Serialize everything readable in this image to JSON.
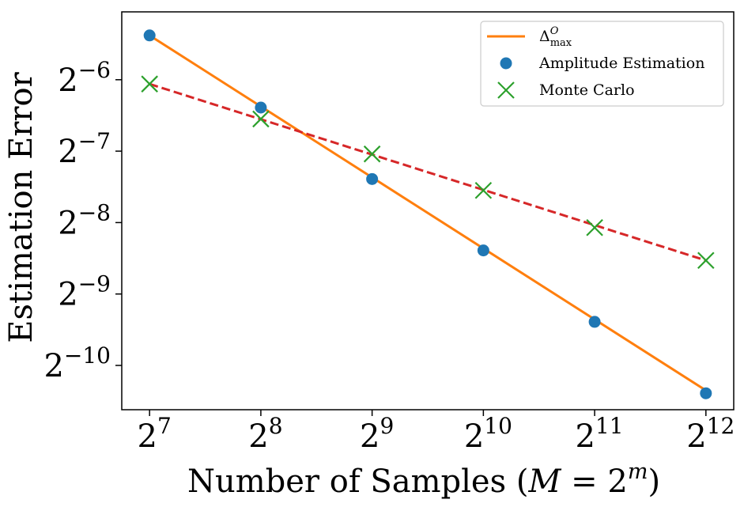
{
  "chart_data": {
    "type": "line",
    "xlabel": "Number of Samples (M = 2^m)",
    "xlabel_parts": {
      "prefix": "Number of Samples (",
      "var": "M",
      "eq": " = 2",
      "exp": "m",
      "suffix": ")"
    },
    "ylabel": "Estimation Error",
    "scale": {
      "x": "log2",
      "y": "log2"
    },
    "xlim_exp": [
      6.75,
      12.25
    ],
    "ylim_exp": [
      -10.62,
      -5.05
    ],
    "x_ticks": [
      {
        "base": "2",
        "exp": "7",
        "value": 7
      },
      {
        "base": "2",
        "exp": "8",
        "value": 8
      },
      {
        "base": "2",
        "exp": "9",
        "value": 9
      },
      {
        "base": "2",
        "exp": "10",
        "value": 10
      },
      {
        "base": "2",
        "exp": "11",
        "value": 11
      },
      {
        "base": "2",
        "exp": "12",
        "value": 12
      }
    ],
    "y_ticks": [
      {
        "base": "2",
        "exp": "−6",
        "value": -6
      },
      {
        "base": "2",
        "exp": "−7",
        "value": -7
      },
      {
        "base": "2",
        "exp": "−8",
        "value": -8
      },
      {
        "base": "2",
        "exp": "−9",
        "value": -9
      },
      {
        "base": "2",
        "exp": "−10",
        "value": -10
      }
    ],
    "series": [
      {
        "name": "Δ^O_max",
        "label_parts": {
          "base": "Δ",
          "sup": "O",
          "sub": "max"
        },
        "kind": "line",
        "style": "solid",
        "color": "#ff7f0e",
        "x_exp": [
          7,
          12
        ],
        "y_exp": [
          -5.38,
          -10.35
        ]
      },
      {
        "name": "Amplitude Estimation",
        "kind": "markers",
        "marker": "circle",
        "color": "#1f77b4",
        "x_exp": [
          7,
          8,
          9,
          10,
          11,
          12
        ],
        "y_exp": [
          -5.38,
          -6.39,
          -7.39,
          -8.39,
          -9.39,
          -10.39
        ]
      },
      {
        "name": "Monte Carlo",
        "kind": "markers",
        "marker": "x",
        "color": "#2ca02c",
        "x_exp": [
          7,
          8,
          9,
          10,
          11,
          12
        ],
        "y_exp": [
          -6.06,
          -6.55,
          -7.04,
          -7.55,
          -8.07,
          -8.53
        ]
      },
      {
        "name": "",
        "kind": "line",
        "style": "dashed",
        "color": "#d62728",
        "x_exp": [
          7,
          12
        ],
        "y_exp": [
          -6.06,
          -8.53
        ]
      }
    ],
    "legend": {
      "placement": "top-right",
      "entries": [
        "Δ^O_max",
        "Amplitude Estimation",
        "Monte Carlo"
      ]
    },
    "grid": false
  }
}
